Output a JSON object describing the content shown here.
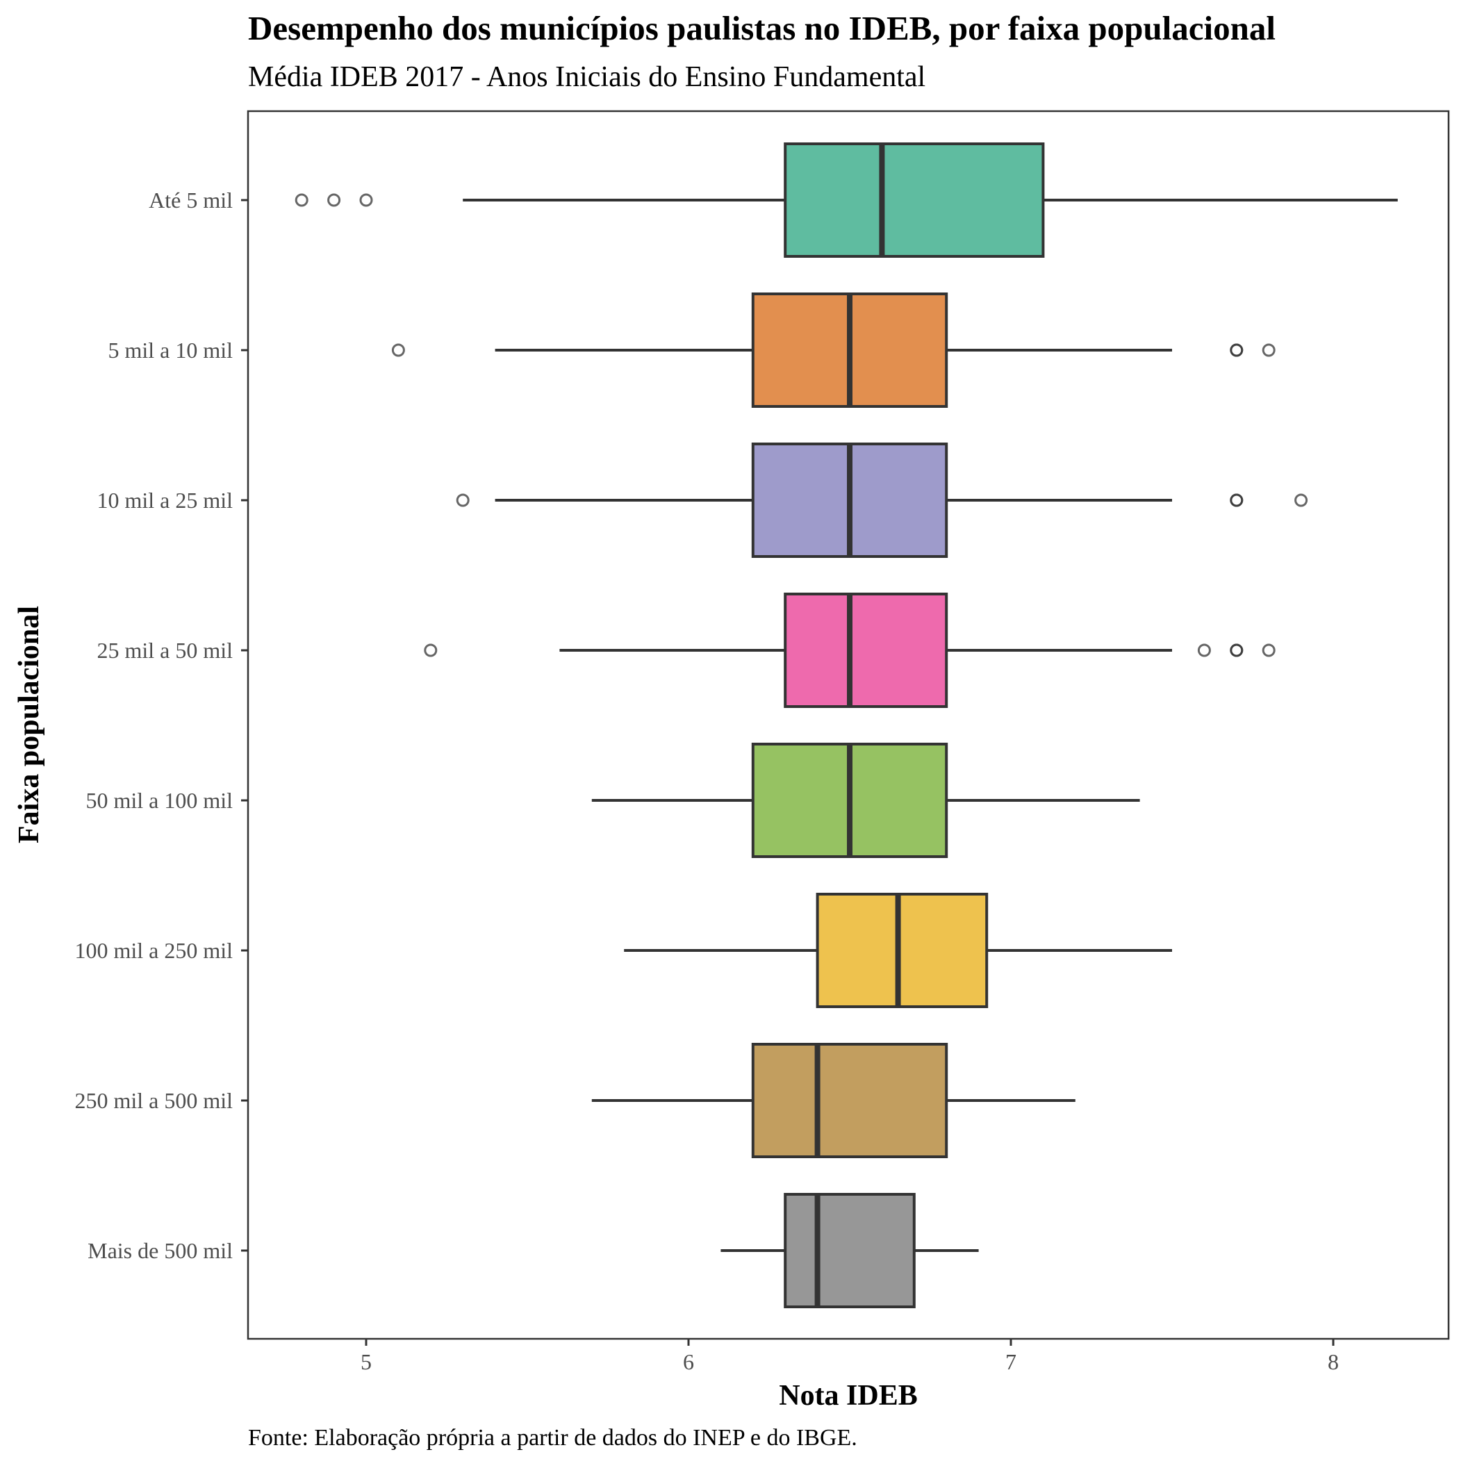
{
  "chart_data": {
    "type": "boxplot",
    "orientation": "horizontal",
    "title": "Desempenho dos municípios paulistas no IDEB, por faixa populacional",
    "subtitle": "Média IDEB 2017 - Anos Iniciais do Ensino Fundamental",
    "xlabel": "Nota IDEB",
    "ylabel": "Faixa populacional",
    "caption": "Fonte: Elaboração própria a partir de dados do INEP e do IBGE.",
    "xlim": [
      4.63,
      8.37
    ],
    "xticks": [
      5,
      6,
      7,
      8
    ],
    "grid": false,
    "legend": "none",
    "categories": [
      {
        "label": "Até 5 mil",
        "color": "#5fbca0",
        "whisker_low": 5.3,
        "q1": 6.3,
        "median": 6.6,
        "q3": 7.1,
        "whisker_high": 8.2,
        "outliers": [
          4.8,
          4.9,
          5.0
        ]
      },
      {
        "label": "5 mil a 10 mil",
        "color": "#e28f4f",
        "whisker_low": 5.4,
        "q1": 6.2,
        "median": 6.5,
        "q3": 6.8,
        "whisker_high": 7.5,
        "outliers": [
          5.1,
          7.7,
          7.7,
          7.8
        ]
      },
      {
        "label": "10 mil a 25 mil",
        "color": "#9e9bcb",
        "whisker_low": 5.4,
        "q1": 6.2,
        "median": 6.5,
        "q3": 6.8,
        "whisker_high": 7.5,
        "outliers": [
          5.3,
          7.7,
          7.7,
          7.9
        ]
      },
      {
        "label": "25 mil a 50 mil",
        "color": "#ee6aad",
        "whisker_low": 5.6,
        "q1": 6.3,
        "median": 6.5,
        "q3": 6.8,
        "whisker_high": 7.5,
        "outliers": [
          5.2,
          7.6,
          7.7,
          7.7,
          7.8
        ]
      },
      {
        "label": "50 mil a 100 mil",
        "color": "#96c262",
        "whisker_low": 5.7,
        "q1": 6.2,
        "median": 6.5,
        "q3": 6.8,
        "whisker_high": 7.4,
        "outliers": []
      },
      {
        "label": "100 mil a 250 mil",
        "color": "#eec24e",
        "whisker_low": 5.8,
        "q1": 6.4,
        "median": 6.65,
        "q3": 6.925,
        "whisker_high": 7.5,
        "outliers": []
      },
      {
        "label": "250 mil a 500 mil",
        "color": "#c29e5f",
        "whisker_low": 5.7,
        "q1": 6.2,
        "median": 6.4,
        "q3": 6.8,
        "whisker_high": 7.2,
        "outliers": []
      },
      {
        "label": "Mais de 500 mil",
        "color": "#979797",
        "whisker_low": 6.1,
        "q1": 6.3,
        "median": 6.4,
        "q3": 6.7,
        "whisker_high": 6.9,
        "outliers": []
      }
    ]
  }
}
